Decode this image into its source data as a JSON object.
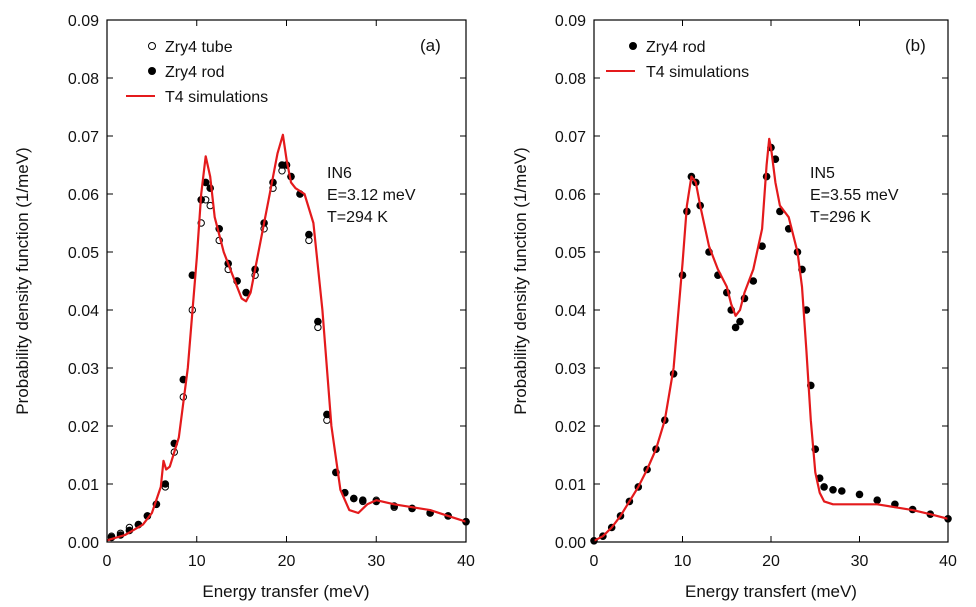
{
  "chart_data": [
    {
      "type": "scatter",
      "panel_label": "(a)",
      "xlabel": "Energy transfer (meV)",
      "ylabel": "Probability density function (1/meV)",
      "xlim": [
        0,
        40
      ],
      "ylim": [
        0,
        0.09
      ],
      "x_ticks": [
        "0",
        "10",
        "20",
        "30",
        "40"
      ],
      "y_ticks": [
        "0.00",
        "0.01",
        "0.02",
        "0.03",
        "0.04",
        "0.05",
        "0.06",
        "0.07",
        "0.08",
        "0.09"
      ],
      "legend_position": "top-left",
      "annotation": [
        "IN6",
        "E=3.12 meV",
        "T=294 K"
      ],
      "series": [
        {
          "name": "Zry4 tube",
          "marker": "open-circle",
          "color": "#000000",
          "x": [
            0.5,
            1.5,
            2.5,
            3.5,
            4.5,
            5.5,
            6.5,
            7.5,
            8.5,
            9.5,
            10.5,
            11.0,
            11.5,
            12.5,
            13.5,
            14.5,
            15.5,
            16.5,
            17.5,
            18.5,
            19.5,
            20.0,
            20.5,
            21.5,
            22.5,
            23.5,
            24.5,
            25.5,
            26.5,
            27.5,
            28.5,
            30.0,
            32.0,
            34.0,
            36.0,
            38.0,
            40.0
          ],
          "y": [
            0.001,
            0.0015,
            0.0025,
            0.003,
            0.0045,
            0.0065,
            0.0095,
            0.0155,
            0.025,
            0.04,
            0.055,
            0.059,
            0.058,
            0.052,
            0.047,
            0.045,
            0.043,
            0.046,
            0.054,
            0.061,
            0.064,
            0.065,
            0.063,
            0.06,
            0.052,
            0.037,
            0.021,
            0.012,
            0.0085,
            0.0075,
            0.007,
            0.0072,
            0.006,
            0.0058,
            0.005,
            0.0045,
            0.0035
          ]
        },
        {
          "name": "Zry4 rod",
          "marker": "filled-circle",
          "color": "#000000",
          "x": [
            0.5,
            1.5,
            2.5,
            3.5,
            4.5,
            5.5,
            6.5,
            7.5,
            8.5,
            9.5,
            10.5,
            11.0,
            11.5,
            12.5,
            13.5,
            14.5,
            15.5,
            16.5,
            17.5,
            18.5,
            19.5,
            20.0,
            20.5,
            21.5,
            22.5,
            23.5,
            24.5,
            25.5,
            26.5,
            27.5,
            28.5,
            30.0,
            32.0,
            34.0,
            36.0,
            38.0,
            40.0
          ],
          "y": [
            0.0008,
            0.0012,
            0.002,
            0.003,
            0.0045,
            0.0065,
            0.01,
            0.017,
            0.028,
            0.046,
            0.059,
            0.062,
            0.061,
            0.054,
            0.048,
            0.045,
            0.043,
            0.047,
            0.055,
            0.062,
            0.065,
            0.065,
            0.063,
            0.06,
            0.053,
            0.038,
            0.022,
            0.012,
            0.0085,
            0.0075,
            0.0072,
            0.007,
            0.0062,
            0.0058,
            0.005,
            0.0045,
            0.0035
          ]
        },
        {
          "name": "T4 simulations",
          "marker": "line",
          "color": "#e41a1c",
          "x": [
            0,
            2,
            4,
            5,
            6,
            6.3,
            6.6,
            7,
            8,
            9,
            10,
            10.5,
            11,
            11.5,
            12,
            13,
            14,
            15,
            15.5,
            16,
            17,
            18,
            19,
            19.6,
            20,
            20.5,
            21,
            22,
            23,
            24,
            25,
            26,
            27,
            28,
            29,
            30,
            32,
            34,
            36,
            38,
            40
          ],
          "y": [
            0.0003,
            0.0012,
            0.003,
            0.005,
            0.0095,
            0.014,
            0.0125,
            0.013,
            0.018,
            0.03,
            0.049,
            0.06,
            0.0665,
            0.063,
            0.056,
            0.05,
            0.046,
            0.042,
            0.0415,
            0.043,
            0.051,
            0.059,
            0.067,
            0.0702,
            0.066,
            0.062,
            0.061,
            0.06,
            0.055,
            0.04,
            0.02,
            0.009,
            0.0055,
            0.005,
            0.0065,
            0.0072,
            0.0065,
            0.006,
            0.0055,
            0.0045,
            0.0035
          ]
        }
      ]
    },
    {
      "type": "scatter",
      "panel_label": "(b)",
      "xlabel": "Energy transfert (meV)",
      "ylabel": "Probability density function (1/meV)",
      "xlim": [
        0,
        40
      ],
      "ylim": [
        0,
        0.09
      ],
      "x_ticks": [
        "0",
        "10",
        "20",
        "30",
        "40"
      ],
      "y_ticks": [
        "0.00",
        "0.01",
        "0.02",
        "0.03",
        "0.04",
        "0.05",
        "0.06",
        "0.07",
        "0.08",
        "0.09"
      ],
      "legend_position": "top-left",
      "annotation": [
        "IN5",
        "E=3.55 meV",
        "T=296 K"
      ],
      "series": [
        {
          "name": "Zry4 rod",
          "marker": "filled-circle",
          "color": "#000000",
          "x": [
            0,
            1,
            2,
            3,
            4,
            5,
            6,
            7,
            8,
            9,
            10,
            10.5,
            11,
            11.5,
            12,
            13,
            14,
            15,
            15.5,
            16,
            16.5,
            17,
            18,
            19,
            19.5,
            20,
            20.5,
            21,
            22,
            23,
            23.5,
            24,
            24.5,
            25,
            25.5,
            26,
            27,
            28,
            30,
            32,
            34,
            36,
            38,
            40
          ],
          "y": [
            0.0002,
            0.001,
            0.0025,
            0.0045,
            0.007,
            0.0095,
            0.0125,
            0.016,
            0.021,
            0.029,
            0.046,
            0.057,
            0.063,
            0.062,
            0.058,
            0.05,
            0.046,
            0.043,
            0.04,
            0.037,
            0.038,
            0.042,
            0.045,
            0.051,
            0.063,
            0.068,
            0.066,
            0.057,
            0.054,
            0.05,
            0.047,
            0.04,
            0.027,
            0.016,
            0.011,
            0.0095,
            0.009,
            0.0088,
            0.0082,
            0.0072,
            0.0065,
            0.0056,
            0.0048,
            0.004
          ]
        },
        {
          "name": "T4 simulations",
          "marker": "line",
          "color": "#e41a1c",
          "x": [
            0,
            1,
            2,
            3,
            4,
            5,
            6,
            7,
            8,
            9,
            10,
            10.5,
            11,
            11.5,
            12,
            13,
            14,
            15,
            15.5,
            16,
            16.5,
            17,
            18,
            19,
            19.5,
            19.8,
            20,
            20.5,
            21,
            22,
            23,
            23.5,
            24,
            24.5,
            25,
            25.5,
            26,
            27,
            28,
            30,
            32,
            34,
            36,
            38,
            40
          ],
          "y": [
            0.0002,
            0.001,
            0.0025,
            0.0045,
            0.007,
            0.0095,
            0.0125,
            0.016,
            0.021,
            0.03,
            0.048,
            0.058,
            0.063,
            0.062,
            0.058,
            0.051,
            0.047,
            0.044,
            0.041,
            0.039,
            0.04,
            0.043,
            0.047,
            0.054,
            0.065,
            0.0695,
            0.068,
            0.062,
            0.058,
            0.056,
            0.05,
            0.044,
            0.033,
            0.021,
            0.012,
            0.0085,
            0.007,
            0.0065,
            0.0065,
            0.0065,
            0.0065,
            0.006,
            0.0055,
            0.0048,
            0.004
          ]
        }
      ]
    }
  ]
}
